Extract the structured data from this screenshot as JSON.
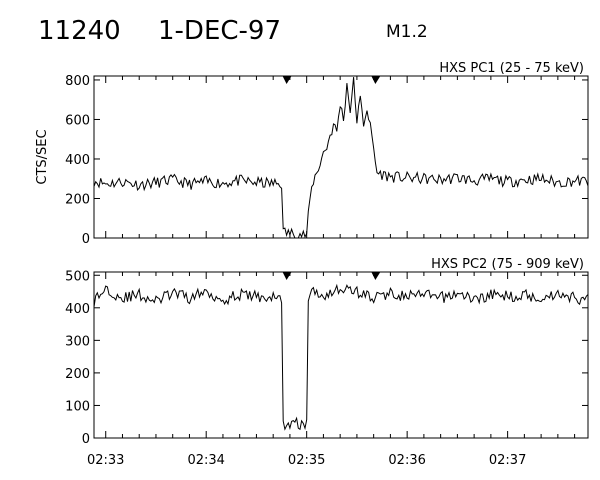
{
  "header": {
    "id": "11240",
    "date": "1-DEC-97",
    "class": "M1.2"
  },
  "chart_data": [
    {
      "type": "line",
      "title": "HXS PC1 (25 - 75 keV)",
      "ylabel": "CTS/SEC",
      "xlabel": "",
      "xlim": [
        "02:32:53",
        "02:37:48"
      ],
      "ylim": [
        0,
        820
      ],
      "yticks": [
        0,
        200,
        400,
        600,
        800
      ],
      "xtick_labels": [
        "02:33",
        "02:34",
        "02:35",
        "02:36",
        "02:37"
      ],
      "markers_time": [
        "02:34:48",
        "02:35:41"
      ],
      "series": [
        {
          "x": [
            "02:32:53",
            "02:33:00",
            "02:33:10",
            "02:33:20",
            "02:33:30",
            "02:33:40",
            "02:33:50",
            "02:34:00",
            "02:34:10",
            "02:34:20",
            "02:34:30",
            "02:34:40",
            "02:34:45",
            "02:34:46",
            "02:34:50",
            "02:34:55",
            "02:35:00",
            "02:35:02",
            "02:35:04",
            "02:35:06",
            "02:35:08",
            "02:35:10",
            "02:35:12",
            "02:35:14",
            "02:35:16",
            "02:35:18",
            "02:35:20",
            "02:35:22",
            "02:35:24",
            "02:35:26",
            "02:35:28",
            "02:35:30",
            "02:35:32",
            "02:35:34",
            "02:35:36",
            "02:35:38",
            "02:35:40",
            "02:35:42",
            "02:35:50",
            "02:36:00",
            "02:36:10",
            "02:36:20",
            "02:36:30",
            "02:36:40",
            "02:36:50",
            "02:37:00",
            "02:37:10",
            "02:37:20",
            "02:37:30",
            "02:37:40",
            "02:37:48"
          ],
          "y": [
            290,
            275,
            285,
            270,
            280,
            295,
            272,
            285,
            278,
            290,
            280,
            275,
            275,
            30,
            25,
            20,
            15,
            200,
            290,
            330,
            380,
            430,
            460,
            520,
            570,
            540,
            680,
            600,
            780,
            650,
            790,
            600,
            700,
            580,
            660,
            560,
            450,
            330,
            310,
            305,
            300,
            295,
            305,
            290,
            300,
            285,
            295,
            300,
            280,
            290,
            285
          ]
        }
      ]
    },
    {
      "type": "line",
      "title": "HXS PC2 (75 - 909 keV)",
      "ylabel": "",
      "xlabel": "",
      "xlim": [
        "02:32:53",
        "02:37:48"
      ],
      "ylim": [
        0,
        510
      ],
      "yticks": [
        0,
        100,
        200,
        300,
        400,
        500
      ],
      "xtick_labels": [
        "02:33",
        "02:34",
        "02:35",
        "02:36",
        "02:37"
      ],
      "markers_time": [
        "02:34:48",
        "02:35:41"
      ],
      "series": [
        {
          "x": [
            "02:32:53",
            "02:33:00",
            "02:33:10",
            "02:33:20",
            "02:33:30",
            "02:33:40",
            "02:33:50",
            "02:34:00",
            "02:34:10",
            "02:34:20",
            "02:34:30",
            "02:34:40",
            "02:34:45",
            "02:34:46",
            "02:34:55",
            "02:35:00",
            "02:35:01",
            "02:35:02",
            "02:35:10",
            "02:35:20",
            "02:35:30",
            "02:35:40",
            "02:35:50",
            "02:36:00",
            "02:36:10",
            "02:36:20",
            "02:36:30",
            "02:36:40",
            "02:36:50",
            "02:37:00",
            "02:37:10",
            "02:37:20",
            "02:37:30",
            "02:37:40",
            "02:37:48"
          ],
          "y": [
            420,
            460,
            430,
            440,
            420,
            445,
            430,
            450,
            425,
            440,
            435,
            430,
            430,
            40,
            45,
            40,
            430,
            450,
            440,
            460,
            450,
            430,
            445,
            435,
            440,
            430,
            445,
            425,
            440,
            435,
            440,
            430,
            445,
            430,
            425
          ]
        }
      ]
    }
  ]
}
